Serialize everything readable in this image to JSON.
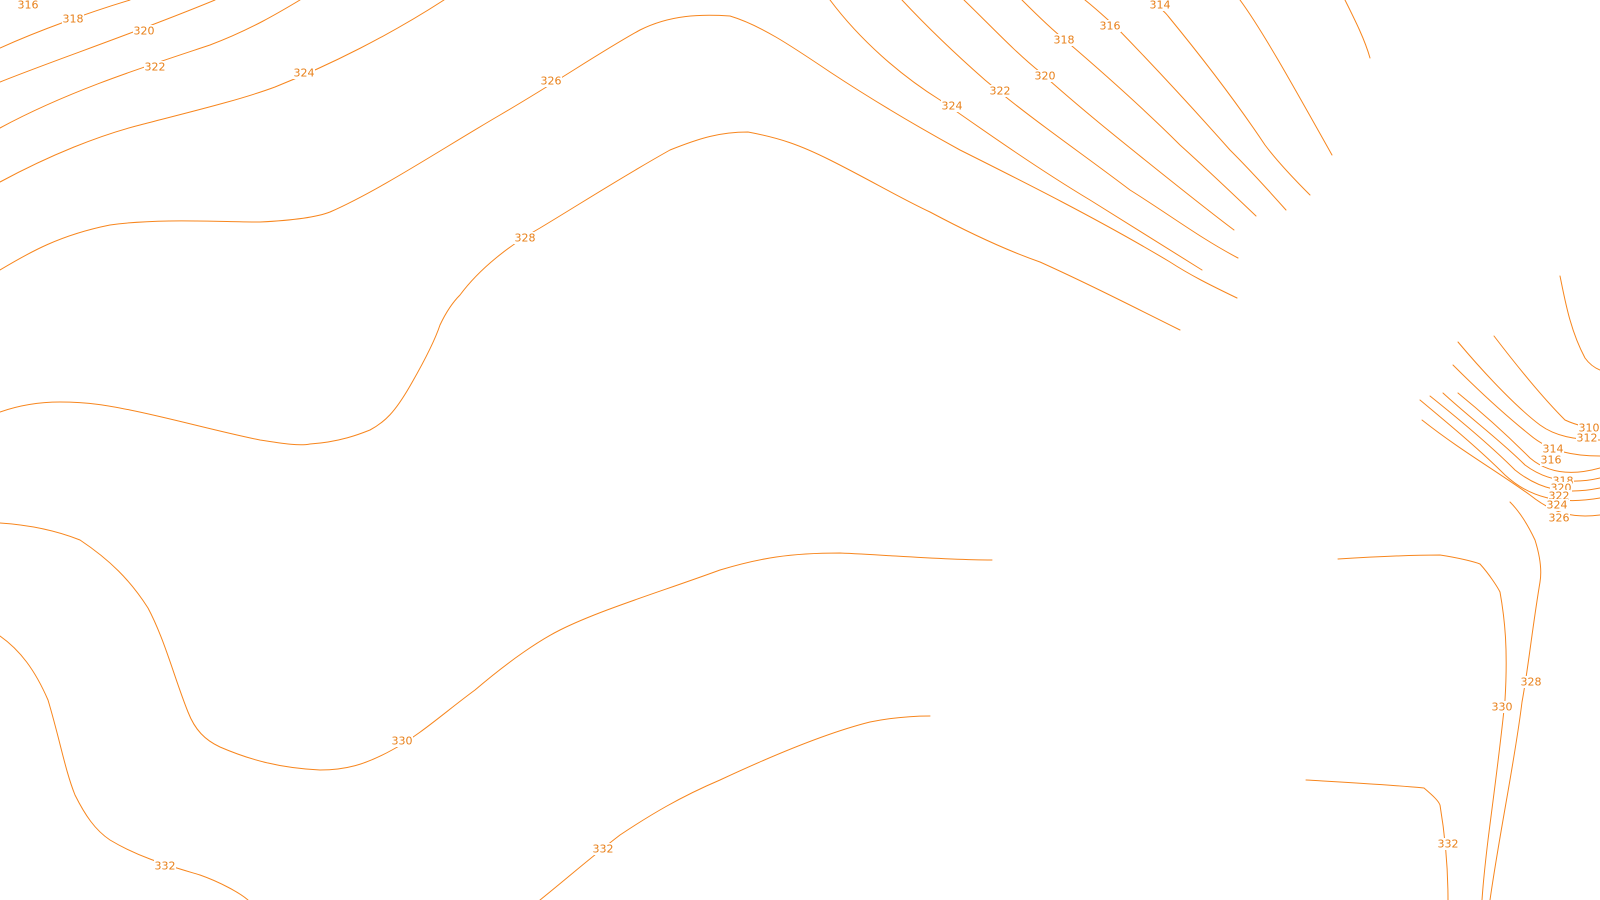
{
  "map": {
    "line_color": "#F7861E",
    "label_color": "#E8801A",
    "background": "#FFFFFF"
  },
  "contour_labels": [
    {
      "id": "label-316-top-left",
      "text": "316"
    },
    {
      "id": "label-318-top-left",
      "text": "318"
    },
    {
      "id": "label-320-top-left",
      "text": "320"
    },
    {
      "id": "label-322-top-left",
      "text": "322"
    },
    {
      "id": "label-324-top-left",
      "text": "324"
    },
    {
      "id": "label-326-top",
      "text": "326"
    },
    {
      "id": "label-328-center",
      "text": "328"
    },
    {
      "id": "label-324-top-right",
      "text": "324"
    },
    {
      "id": "label-322-top-right",
      "text": "322"
    },
    {
      "id": "label-320-top-right",
      "text": "320"
    },
    {
      "id": "label-318-top-right",
      "text": "318"
    },
    {
      "id": "label-316-top-right",
      "text": "316"
    },
    {
      "id": "label-314-top-right",
      "text": "314"
    },
    {
      "id": "label-310-right",
      "text": "310"
    },
    {
      "id": "label-312-right",
      "text": "312"
    },
    {
      "id": "label-314-right",
      "text": "314"
    },
    {
      "id": "label-316-right",
      "text": "316"
    },
    {
      "id": "label-318-right",
      "text": "318"
    },
    {
      "id": "label-320-right",
      "text": "320"
    },
    {
      "id": "label-322-right",
      "text": "322"
    },
    {
      "id": "label-324-right",
      "text": "324"
    },
    {
      "id": "label-326-right",
      "text": "326"
    },
    {
      "id": "label-330-center",
      "text": "330"
    },
    {
      "id": "label-332-bottom-left",
      "text": "332"
    },
    {
      "id": "label-332-bottom-center",
      "text": "332"
    },
    {
      "id": "label-328-right",
      "text": "328"
    },
    {
      "id": "label-330-right",
      "text": "330"
    },
    {
      "id": "label-332-bottom-right",
      "text": "332"
    }
  ]
}
